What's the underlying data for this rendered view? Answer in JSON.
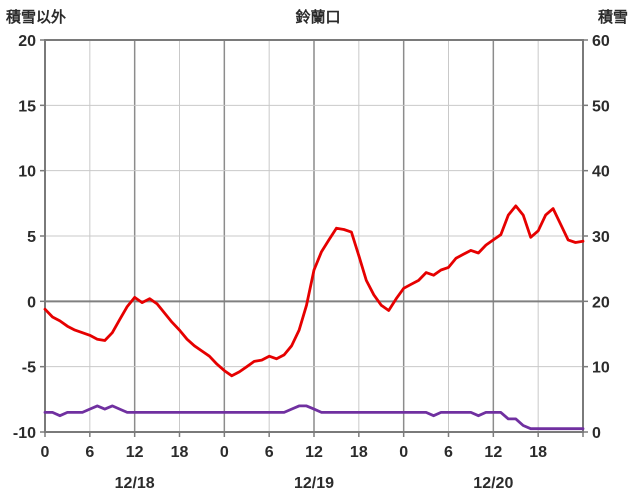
{
  "header": {
    "left_axis_title": "積雪以外",
    "chart_title": "鈴蘭口",
    "right_axis_title": "積雪"
  },
  "colors": {
    "grid_light": "#c9c9c9",
    "grid_dark": "#8c8c8c",
    "zero_line": "#808080",
    "border": "#7a7a7a",
    "text": "#2b2b2b",
    "series_red": "#e60000",
    "series_purple": "#7030a0"
  },
  "chart_data": {
    "type": "line",
    "title": "鈴蘭口",
    "x_unit": "hour",
    "x_range": [
      0,
      72
    ],
    "x_tick_step": 6,
    "x_tick_labels": [
      "0",
      "6",
      "12",
      "18",
      "0",
      "6",
      "12",
      "18",
      "0",
      "6",
      "12",
      "18"
    ],
    "date_labels": [
      {
        "label": "12/18",
        "center_hour": 12
      },
      {
        "label": "12/19",
        "center_hour": 36
      },
      {
        "label": "12/20",
        "center_hour": 60
      }
    ],
    "left_axis": {
      "title": "積雪以外",
      "min": -10,
      "max": 20,
      "ticks": [
        20,
        15,
        10,
        5,
        0,
        -5,
        -10
      ]
    },
    "right_axis": {
      "title": "積雪",
      "min": 0,
      "max": 60,
      "ticks": [
        60,
        50,
        40,
        30,
        20,
        10,
        0
      ]
    },
    "grid": {
      "vertical_every_hours": 6,
      "dark_vertical_every_hours": 12,
      "horizontal_at": [
        15,
        10,
        5,
        0,
        -5
      ],
      "zero_line_dark": true
    },
    "series": [
      {
        "name": "積雪以外",
        "axis": "left",
        "color": "#e60000",
        "values": [
          -0.6,
          -1.2,
          -1.5,
          -1.9,
          -2.2,
          -2.4,
          -2.6,
          -2.9,
          -3.0,
          -2.4,
          -1.4,
          -0.4,
          0.3,
          -0.1,
          0.2,
          -0.2,
          -0.9,
          -1.6,
          -2.2,
          -2.9,
          -3.4,
          -3.8,
          -4.2,
          -4.8,
          -5.3,
          -5.7,
          -5.4,
          -5.0,
          -4.6,
          -4.5,
          -4.2,
          -4.4,
          -4.1,
          -3.4,
          -2.2,
          -0.3,
          2.4,
          3.8,
          4.7,
          5.6,
          5.5,
          5.3,
          3.5,
          1.6,
          0.5,
          -0.3,
          -0.7,
          0.2,
          1.0,
          1.3,
          1.6,
          2.2,
          2.0,
          2.4,
          2.6,
          3.3,
          3.6,
          3.9,
          3.7,
          4.3,
          4.7,
          5.1,
          6.6,
          7.3,
          6.6,
          4.9,
          5.4,
          6.6,
          7.1,
          5.9,
          4.7,
          4.5,
          4.6
        ]
      },
      {
        "name": "積雪",
        "axis": "right",
        "color": "#7030a0",
        "values": [
          3,
          3,
          2.5,
          3,
          3,
          3,
          3.5,
          4,
          3.5,
          4,
          3.5,
          3,
          3,
          3,
          3,
          3,
          3,
          3,
          3,
          3,
          3,
          3,
          3,
          3,
          3,
          3,
          3,
          3,
          3,
          3,
          3,
          3,
          3,
          3.5,
          4,
          4,
          3.5,
          3,
          3,
          3,
          3,
          3,
          3,
          3,
          3,
          3,
          3,
          3,
          3,
          3,
          3,
          3,
          2.5,
          3,
          3,
          3,
          3,
          3,
          2.5,
          3,
          3,
          3,
          2,
          2,
          1,
          0.5,
          0.5,
          0.5,
          0.5,
          0.5,
          0.5,
          0.5,
          0.5
        ]
      }
    ]
  }
}
